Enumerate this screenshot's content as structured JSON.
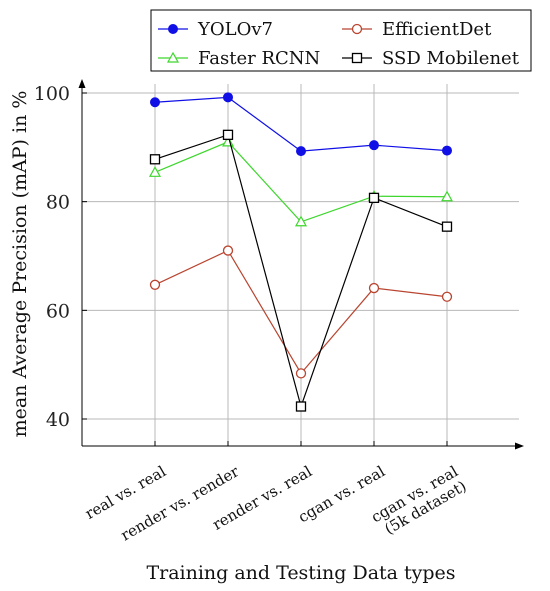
{
  "chart_data": {
    "type": "line",
    "xlabel": "Training and Testing Data types",
    "ylabel": "mean Average Precision (mAP) in %",
    "categories": [
      [
        "real vs. real"
      ],
      [
        "render vs. render"
      ],
      [
        "render vs. real"
      ],
      [
        "cgan vs. real"
      ],
      [
        "cgan vs. real",
        "(5k dataset)"
      ]
    ],
    "ylim": [
      38,
      102
    ],
    "yticks": [
      40,
      60,
      80,
      100
    ],
    "grid": true,
    "legend_position": "top-right",
    "series": [
      {
        "name": "YOLOv7",
        "values": [
          98.3,
          99.2,
          89.3,
          90.4,
          89.4
        ],
        "color": "#1010e6",
        "marker": "filled-circle"
      },
      {
        "name": "EfficientDet",
        "values": [
          64.7,
          71.0,
          48.4,
          64.1,
          62.5
        ],
        "color": "#b94530",
        "marker": "open-circle"
      },
      {
        "name": "Faster RCNN",
        "values": [
          85.4,
          91.0,
          76.3,
          81.0,
          80.9
        ],
        "color": "#3fd62e",
        "marker": "open-triangle"
      },
      {
        "name": "SSD Mobilenet",
        "values": [
          87.8,
          92.3,
          42.3,
          80.7,
          75.4
        ],
        "color": "#000000",
        "marker": "open-square"
      }
    ]
  }
}
